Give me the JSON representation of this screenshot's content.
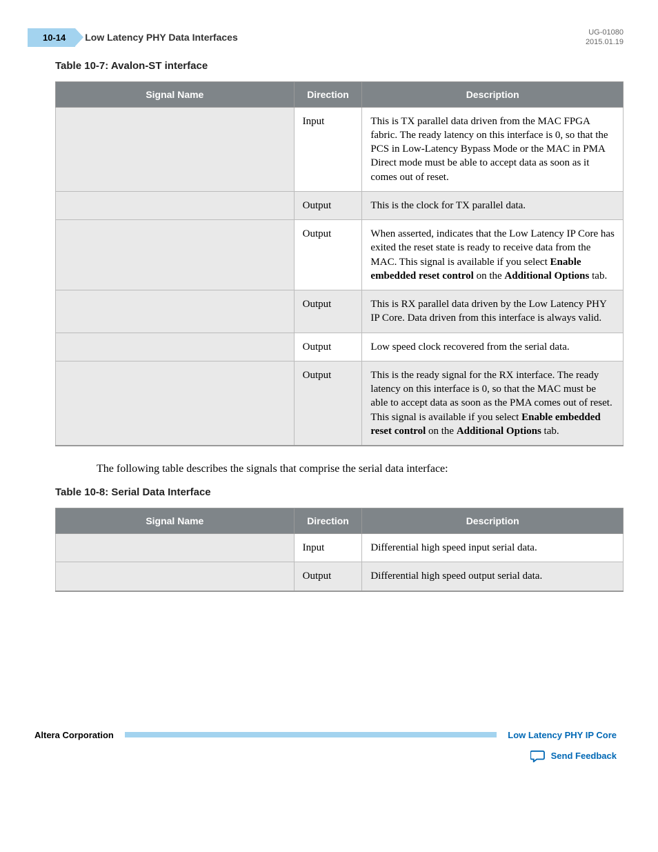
{
  "header": {
    "page_num": "10-14",
    "title": "Low Latency PHY Data Interfaces",
    "doc_id": "UG-01080",
    "date": "2015.01.19"
  },
  "table1": {
    "title": "Table 10-7: Avalon-ST interface",
    "columns": [
      "Signal Name",
      "Direction",
      "Description"
    ],
    "rows": [
      {
        "signal": "",
        "direction": "Input",
        "desc_parts": [
          {
            "t": "This is TX parallel data driven from the MAC FPGA fabric. The ready latency on this interface is 0, so that the PCS in Low-Latency Bypass Mode or the MAC in PMA Direct mode must be able to accept data as soon as it comes out of reset."
          }
        ]
      },
      {
        "signal": "",
        "direction": "Output",
        "desc_parts": [
          {
            "t": "This is the clock for TX parallel data."
          }
        ]
      },
      {
        "signal": "",
        "direction": "Output",
        "desc_parts": [
          {
            "t": "When asserted, indicates that the Low Latency IP Core has exited the reset state is ready to receive data from the MAC. This signal is available if you select "
          },
          {
            "t": "Enable embedded reset control",
            "b": true
          },
          {
            "t": " on the "
          },
          {
            "t": "Additional Options",
            "b": true
          },
          {
            "t": " tab."
          }
        ]
      },
      {
        "signal": "",
        "direction": "Output",
        "desc_parts": [
          {
            "t": "This is RX parallel data driven by the Low Latency PHY IP Core. Data driven from this interface is always valid."
          }
        ]
      },
      {
        "signal": "",
        "direction": "Output",
        "desc_parts": [
          {
            "t": "Low speed clock recovered from the serial data."
          }
        ]
      },
      {
        "signal": "",
        "direction": "Output",
        "desc_parts": [
          {
            "t": "This is the ready signal for the RX interface. The ready latency on this interface is 0, so that the MAC must be able to accept data as soon as the PMA comes out of reset. This signal is available if you select "
          },
          {
            "t": "Enable embedded reset control",
            "b": true
          },
          {
            "t": " on the "
          },
          {
            "t": "Additional Options",
            "b": true
          },
          {
            "t": " tab."
          }
        ]
      }
    ]
  },
  "inter_text": "The following table describes the signals that comprise the serial data interface:",
  "table2": {
    "title": "Table 10-8: Serial Data Interface",
    "columns": [
      "Signal Name",
      "Direction",
      "Description"
    ],
    "rows": [
      {
        "signal": "",
        "direction": "Input",
        "desc_parts": [
          {
            "t": "Differential high speed input serial data."
          }
        ]
      },
      {
        "signal": "",
        "direction": "Output",
        "desc_parts": [
          {
            "t": "Differential high speed output serial data."
          }
        ]
      }
    ]
  },
  "footer": {
    "corp": "Altera Corporation",
    "link": "Low Latency PHY IP Core",
    "feedback": "Send Feedback"
  }
}
